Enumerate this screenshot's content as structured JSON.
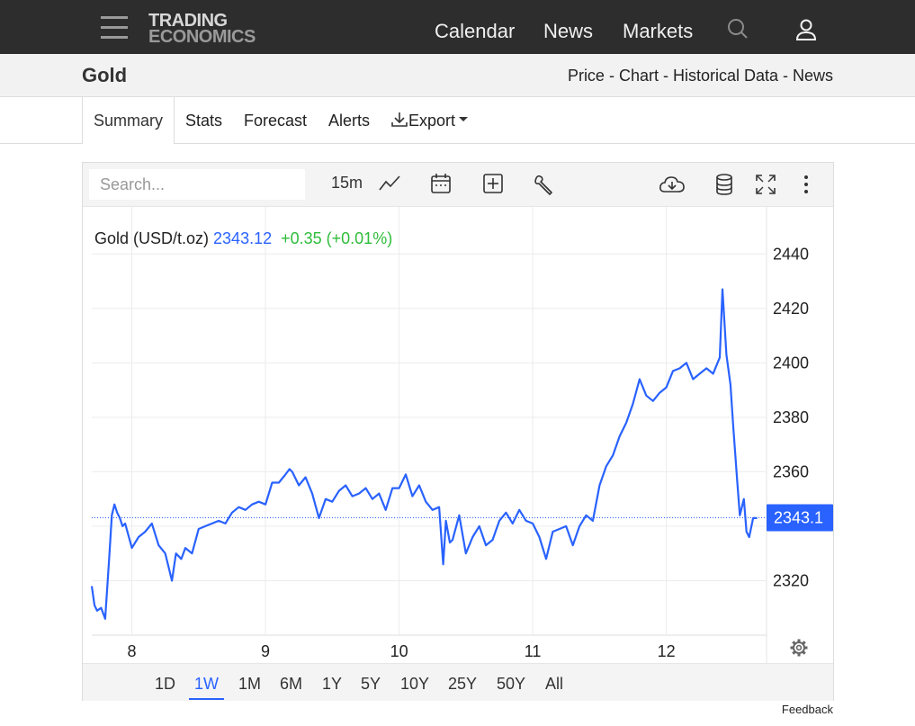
{
  "header": {
    "logo_line1": "TRADING",
    "logo_line2": "ECONOMICS",
    "nav": [
      "Calendar",
      "News",
      "Markets"
    ]
  },
  "page": {
    "title": "Gold",
    "links": "Price - Chart - Historical Data - News"
  },
  "tabs": [
    "Summary",
    "Stats",
    "Forecast",
    "Alerts",
    "Export"
  ],
  "toolbar": {
    "search_placeholder": "Search...",
    "interval": "15m"
  },
  "legend": {
    "name": "Gold (USD/t.oz)",
    "price": "2343.12",
    "change": "+0.35 (+0.01%)"
  },
  "last_price_label": "2343.1",
  "ranges": [
    "1D",
    "1W",
    "1M",
    "6M",
    "1Y",
    "5Y",
    "10Y",
    "25Y",
    "50Y",
    "All"
  ],
  "active_range": "1W",
  "feedback": "Feedback",
  "colors": {
    "line": "#2962ff",
    "up": "#2ebd3a",
    "topbar": "#2d2d2d"
  },
  "icons": [
    "menu-icon",
    "search-icon",
    "user-icon",
    "line-chart-icon",
    "calendar-icon",
    "add-icon",
    "wrench-icon",
    "cloud-download-icon",
    "database-icon",
    "fullscreen-icon",
    "more-vertical-icon",
    "settings-gear-icon"
  ],
  "chart_data": {
    "type": "line",
    "title": "Gold (USD/t.oz)",
    "xlabel": "",
    "ylabel": "",
    "x_ticks": [
      "8",
      "9",
      "10",
      "11",
      "12"
    ],
    "y_ticks": [
      2320,
      2340,
      2360,
      2380,
      2400,
      2420,
      2440
    ],
    "y_tick_labels": [
      "2320",
      "",
      "2360",
      "2380",
      "2400",
      "2420",
      "2440"
    ],
    "ylim": [
      2300,
      2450
    ],
    "xlim": [
      7.7,
      12.75
    ],
    "grid": true,
    "last_value": 2343.12,
    "series": [
      {
        "name": "Gold (USD/t.oz)",
        "x": [
          7.7,
          7.72,
          7.74,
          7.77,
          7.8,
          7.83,
          7.85,
          7.87,
          7.89,
          7.91,
          7.93,
          7.95,
          8.0,
          8.05,
          8.1,
          8.15,
          8.2,
          8.25,
          8.3,
          8.33,
          8.37,
          8.4,
          8.45,
          8.5,
          8.55,
          8.6,
          8.65,
          8.7,
          8.75,
          8.8,
          8.85,
          8.9,
          8.95,
          9.0,
          9.05,
          9.1,
          9.15,
          9.18,
          9.2,
          9.25,
          9.3,
          9.35,
          9.4,
          9.45,
          9.5,
          9.55,
          9.6,
          9.65,
          9.7,
          9.75,
          9.8,
          9.85,
          9.9,
          9.95,
          10.0,
          10.05,
          10.1,
          10.15,
          10.2,
          10.25,
          10.3,
          10.33,
          10.35,
          10.38,
          10.4,
          10.45,
          10.5,
          10.55,
          10.6,
          10.65,
          10.7,
          10.75,
          10.8,
          10.85,
          10.9,
          10.95,
          11.0,
          11.05,
          11.1,
          11.15,
          11.2,
          11.25,
          11.3,
          11.35,
          11.4,
          11.45,
          11.5,
          11.55,
          11.6,
          11.65,
          11.7,
          11.75,
          11.8,
          11.85,
          11.9,
          11.95,
          12.0,
          12.05,
          12.1,
          12.15,
          12.2,
          12.25,
          12.3,
          12.35,
          12.4,
          12.42,
          12.45,
          12.48,
          12.5,
          12.53,
          12.55,
          12.58,
          12.6,
          12.62,
          12.65,
          12.68
        ],
        "values": [
          2318,
          2311,
          2309,
          2310,
          2306,
          2328,
          2344,
          2348,
          2345,
          2343,
          2340,
          2341,
          2332,
          2336,
          2338,
          2341,
          2333,
          2330,
          2320,
          2330,
          2328,
          2332,
          2330,
          2339,
          2340,
          2341,
          2342,
          2341,
          2345,
          2347,
          2346,
          2348,
          2349,
          2348,
          2356,
          2356,
          2359,
          2361,
          2360,
          2355,
          2358,
          2352,
          2343,
          2350,
          2349,
          2353,
          2355,
          2351,
          2352,
          2354,
          2350,
          2352,
          2346,
          2354,
          2354,
          2359,
          2351,
          2355,
          2349,
          2346,
          2347,
          2326,
          2342,
          2334,
          2335,
          2344,
          2330,
          2336,
          2340,
          2333,
          2335,
          2342,
          2345,
          2341,
          2346,
          2342,
          2341,
          2336,
          2328,
          2338,
          2339,
          2340,
          2333,
          2340,
          2344,
          2342,
          2355,
          2362,
          2366,
          2373,
          2378,
          2385,
          2394,
          2388,
          2386,
          2389,
          2391,
          2397,
          2398,
          2400,
          2394,
          2396,
          2398,
          2396,
          2402,
          2427,
          2403,
          2392,
          2377,
          2357,
          2344,
          2350,
          2338,
          2336,
          2343,
          2343
        ]
      }
    ]
  }
}
